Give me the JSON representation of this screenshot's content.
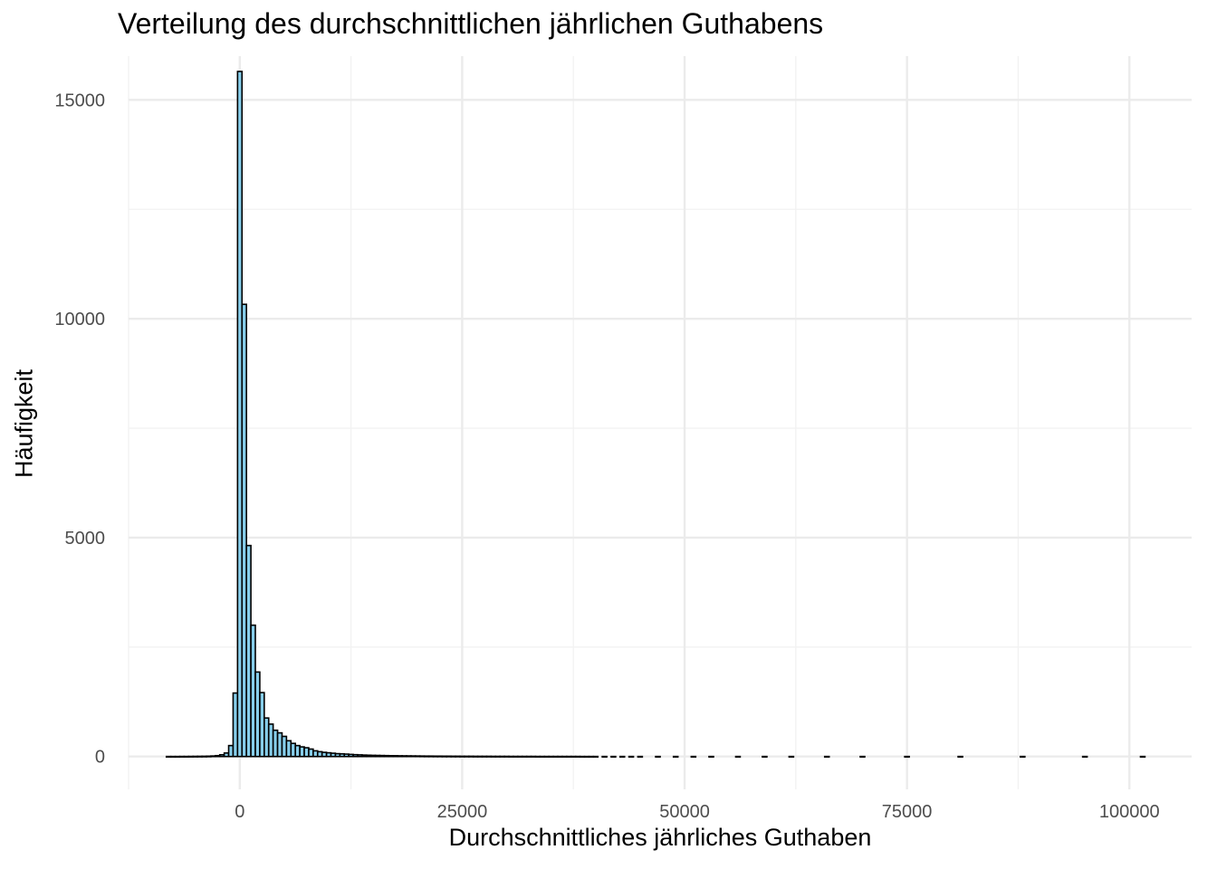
{
  "chart_data": {
    "type": "histogram",
    "title": "Verteilung des durchschnittlichen jährlichen Guthabens",
    "xlabel": "Durchschnittliches jährliches Guthaben",
    "ylabel": "Häufigkeit",
    "xlim": [
      -12500,
      107000
    ],
    "ylim": [
      -750,
      16000
    ],
    "x_ticks": [
      0,
      25000,
      50000,
      75000,
      100000
    ],
    "x_tick_labels": [
      "0",
      "25000",
      "50000",
      "75000",
      "100000"
    ],
    "y_ticks": [
      0,
      5000,
      10000,
      15000
    ],
    "y_tick_labels": [
      "0",
      "5000",
      "10000",
      "15000"
    ],
    "grid": true,
    "bin_width": 500,
    "fill_color": "#87ceeb",
    "outline_color": "#000000",
    "bins": [
      {
        "x": -8000,
        "count": 1
      },
      {
        "x": -7500,
        "count": 1
      },
      {
        "x": -7000,
        "count": 1
      },
      {
        "x": -6500,
        "count": 2
      },
      {
        "x": -6000,
        "count": 2
      },
      {
        "x": -5500,
        "count": 3
      },
      {
        "x": -5000,
        "count": 4
      },
      {
        "x": -4500,
        "count": 5
      },
      {
        "x": -4000,
        "count": 6
      },
      {
        "x": -3500,
        "count": 8
      },
      {
        "x": -3000,
        "count": 12
      },
      {
        "x": -2500,
        "count": 20
      },
      {
        "x": -2000,
        "count": 40
      },
      {
        "x": -1500,
        "count": 80
      },
      {
        "x": -1000,
        "count": 250
      },
      {
        "x": -500,
        "count": 1450
      },
      {
        "x": 0,
        "count": 15650
      },
      {
        "x": 500,
        "count": 10330
      },
      {
        "x": 1000,
        "count": 4820
      },
      {
        "x": 1500,
        "count": 3000
      },
      {
        "x": 2000,
        "count": 1930
      },
      {
        "x": 2500,
        "count": 1460
      },
      {
        "x": 3000,
        "count": 880
      },
      {
        "x": 3500,
        "count": 740
      },
      {
        "x": 4000,
        "count": 600
      },
      {
        "x": 4500,
        "count": 540
      },
      {
        "x": 5000,
        "count": 460
      },
      {
        "x": 5500,
        "count": 360
      },
      {
        "x": 6000,
        "count": 300
      },
      {
        "x": 6500,
        "count": 250
      },
      {
        "x": 7000,
        "count": 220
      },
      {
        "x": 7500,
        "count": 200
      },
      {
        "x": 8000,
        "count": 170
      },
      {
        "x": 8500,
        "count": 130
      },
      {
        "x": 9000,
        "count": 110
      },
      {
        "x": 9500,
        "count": 95
      },
      {
        "x": 10000,
        "count": 85
      },
      {
        "x": 10500,
        "count": 75
      },
      {
        "x": 11000,
        "count": 65
      },
      {
        "x": 11500,
        "count": 60
      },
      {
        "x": 12000,
        "count": 55
      },
      {
        "x": 12500,
        "count": 48
      },
      {
        "x": 13000,
        "count": 42
      },
      {
        "x": 13500,
        "count": 38
      },
      {
        "x": 14000,
        "count": 33
      },
      {
        "x": 14500,
        "count": 30
      },
      {
        "x": 15000,
        "count": 27
      },
      {
        "x": 15500,
        "count": 25
      },
      {
        "x": 16000,
        "count": 23
      },
      {
        "x": 16500,
        "count": 21
      },
      {
        "x": 17000,
        "count": 19
      },
      {
        "x": 17500,
        "count": 18
      },
      {
        "x": 18000,
        "count": 16
      },
      {
        "x": 18500,
        "count": 15
      },
      {
        "x": 19000,
        "count": 14
      },
      {
        "x": 19500,
        "count": 13
      },
      {
        "x": 20000,
        "count": 12
      },
      {
        "x": 20500,
        "count": 11
      },
      {
        "x": 21000,
        "count": 10
      },
      {
        "x": 21500,
        "count": 10
      },
      {
        "x": 22000,
        "count": 9
      },
      {
        "x": 22500,
        "count": 9
      },
      {
        "x": 23000,
        "count": 8
      },
      {
        "x": 23500,
        "count": 8
      },
      {
        "x": 24000,
        "count": 7
      },
      {
        "x": 24500,
        "count": 7
      },
      {
        "x": 25000,
        "count": 6
      },
      {
        "x": 25500,
        "count": 6
      },
      {
        "x": 26000,
        "count": 6
      },
      {
        "x": 26500,
        "count": 5
      },
      {
        "x": 27000,
        "count": 5
      },
      {
        "x": 27500,
        "count": 5
      },
      {
        "x": 28000,
        "count": 5
      },
      {
        "x": 28500,
        "count": 4
      },
      {
        "x": 29000,
        "count": 4
      },
      {
        "x": 29500,
        "count": 4
      },
      {
        "x": 30000,
        "count": 4
      },
      {
        "x": 30500,
        "count": 3
      },
      {
        "x": 31000,
        "count": 3
      },
      {
        "x": 31500,
        "count": 3
      },
      {
        "x": 32000,
        "count": 3
      },
      {
        "x": 32500,
        "count": 3
      },
      {
        "x": 33000,
        "count": 3
      },
      {
        "x": 33500,
        "count": 2
      },
      {
        "x": 34000,
        "count": 2
      },
      {
        "x": 34500,
        "count": 2
      },
      {
        "x": 35000,
        "count": 2
      },
      {
        "x": 35500,
        "count": 2
      },
      {
        "x": 36000,
        "count": 2
      },
      {
        "x": 36500,
        "count": 2
      },
      {
        "x": 37000,
        "count": 2
      },
      {
        "x": 37500,
        "count": 2
      },
      {
        "x": 38000,
        "count": 2
      },
      {
        "x": 38500,
        "count": 1
      },
      {
        "x": 39000,
        "count": 1
      },
      {
        "x": 39500,
        "count": 1
      },
      {
        "x": 40000,
        "count": 1
      },
      {
        "x": 41000,
        "count": 1
      },
      {
        "x": 42000,
        "count": 1
      },
      {
        "x": 43000,
        "count": 1
      },
      {
        "x": 44000,
        "count": 1
      },
      {
        "x": 45000,
        "count": 1
      },
      {
        "x": 47000,
        "count": 1
      },
      {
        "x": 49000,
        "count": 1
      },
      {
        "x": 51000,
        "count": 1
      },
      {
        "x": 53000,
        "count": 1
      },
      {
        "x": 56000,
        "count": 1
      },
      {
        "x": 59000,
        "count": 1
      },
      {
        "x": 62000,
        "count": 1
      },
      {
        "x": 66000,
        "count": 1
      },
      {
        "x": 70000,
        "count": 1
      },
      {
        "x": 75000,
        "count": 1
      },
      {
        "x": 81000,
        "count": 1
      },
      {
        "x": 88000,
        "count": 1
      },
      {
        "x": 95000,
        "count": 1
      },
      {
        "x": 101500,
        "count": 1
      }
    ]
  }
}
